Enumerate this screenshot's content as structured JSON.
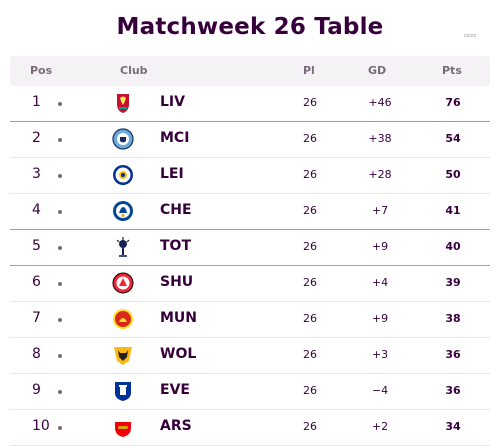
{
  "title": "Matchweek 26 Table",
  "corner_mark": "▫▫▫",
  "columns": {
    "pos": "Pos",
    "club": "Club",
    "pl": "Pl",
    "gd": "GD",
    "pts": "Pts"
  },
  "rows": [
    {
      "pos": "1",
      "club": "LIV",
      "pl": "26",
      "gd": "+46",
      "pts": "76",
      "crest": "liverpool-crest-icon",
      "crest_color": "#c8102e"
    },
    {
      "pos": "2",
      "club": "MCI",
      "pl": "26",
      "gd": "+38",
      "pts": "54",
      "crest": "man-city-crest-icon",
      "crest_color": "#6cabdd"
    },
    {
      "pos": "3",
      "club": "LEI",
      "pl": "26",
      "gd": "+28",
      "pts": "50",
      "crest": "leicester-crest-icon",
      "crest_color": "#003090"
    },
    {
      "pos": "4",
      "club": "CHE",
      "pl": "26",
      "gd": "+7",
      "pts": "41",
      "crest": "chelsea-crest-icon",
      "crest_color": "#034694"
    },
    {
      "pos": "5",
      "club": "TOT",
      "pl": "26",
      "gd": "+9",
      "pts": "40",
      "crest": "tottenham-crest-icon",
      "crest_color": "#132257"
    },
    {
      "pos": "6",
      "club": "SHU",
      "pl": "26",
      "gd": "+4",
      "pts": "39",
      "crest": "sheffield-united-crest-icon",
      "crest_color": "#ee2737"
    },
    {
      "pos": "7",
      "club": "MUN",
      "pl": "26",
      "gd": "+9",
      "pts": "38",
      "crest": "man-united-crest-icon",
      "crest_color": "#da291c"
    },
    {
      "pos": "8",
      "club": "WOL",
      "pl": "26",
      "gd": "+3",
      "pts": "36",
      "crest": "wolves-crest-icon",
      "crest_color": "#fdb913"
    },
    {
      "pos": "9",
      "club": "EVE",
      "pl": "26",
      "gd": "−4",
      "pts": "36",
      "crest": "everton-crest-icon",
      "crest_color": "#003399"
    },
    {
      "pos": "10",
      "club": "ARS",
      "pl": "26",
      "gd": "+2",
      "pts": "34",
      "crest": "arsenal-crest-icon",
      "crest_color": "#ef0107"
    }
  ]
}
